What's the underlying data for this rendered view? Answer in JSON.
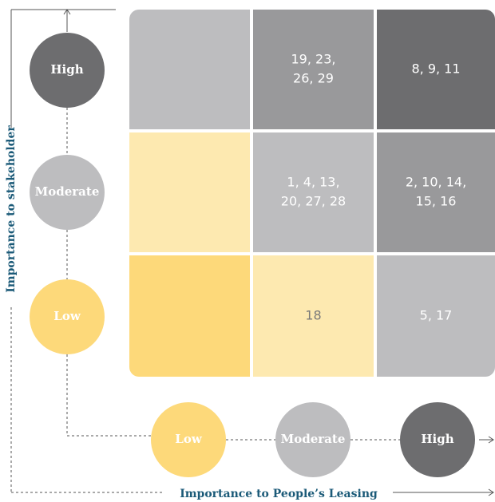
{
  "matrix": {
    "rows": [
      {
        "cells": [
          null,
          [
            "19, 23,",
            "26, 29"
          ],
          [
            "8, 9, 11"
          ]
        ]
      },
      {
        "cells": [
          null,
          [
            "1, 4, 13,",
            "20, 27, 28"
          ],
          [
            "2, 10, 14,",
            "15, 16"
          ]
        ]
      },
      {
        "cells": [
          null,
          [
            "18"
          ],
          [
            "5, 17"
          ]
        ]
      }
    ]
  },
  "y_axis": {
    "label": "Importance to stakeholder",
    "levels": [
      "High",
      "Moderate",
      "Low"
    ]
  },
  "x_axis": {
    "label": "Importance to People’s Leasing",
    "levels": [
      "Low",
      "Moderate",
      "High"
    ]
  }
}
